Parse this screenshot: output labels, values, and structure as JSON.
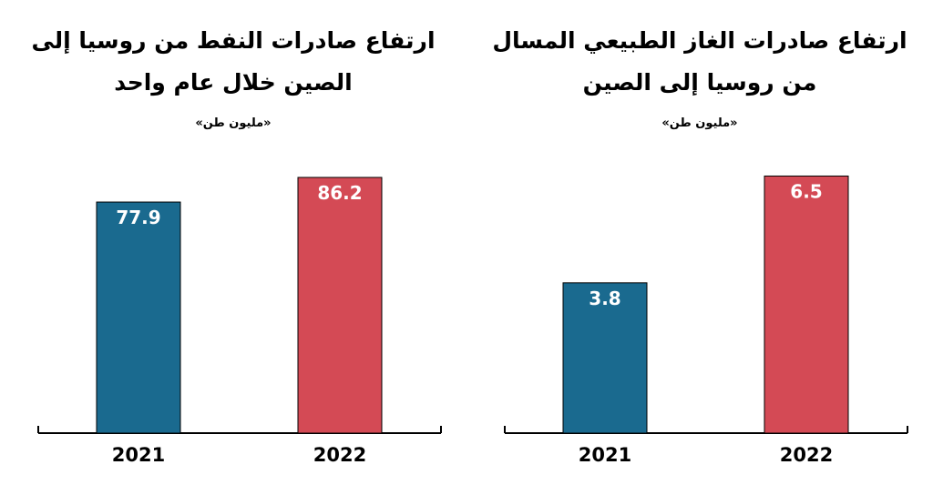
{
  "chart_data": [
    {
      "type": "bar",
      "title": "ارتفاع صادرات النفط من روسيا إلى الصين خلال عام واحد",
      "unit": "«مليون طن»",
      "categories": [
        "2021",
        "2022"
      ],
      "values": [
        77.9,
        86.2
      ],
      "value_labels": [
        "77.9",
        "86.2"
      ],
      "colors": [
        "#1a6a8f",
        "#d44a55"
      ],
      "ylim": [
        0,
        100
      ],
      "grid": false,
      "legend": "none"
    },
    {
      "type": "bar",
      "title": "ارتفاع صادرات الغاز الطبيعي المسال من روسيا إلى الصين",
      "unit": "«مليون طن»",
      "categories": [
        "2021",
        "2022"
      ],
      "values": [
        3.8,
        6.5
      ],
      "value_labels": [
        "3.8",
        "6.5"
      ],
      "colors": [
        "#1a6a8f",
        "#d44a55"
      ],
      "ylim": [
        0,
        7.5
      ],
      "grid": false,
      "legend": "none"
    }
  ]
}
